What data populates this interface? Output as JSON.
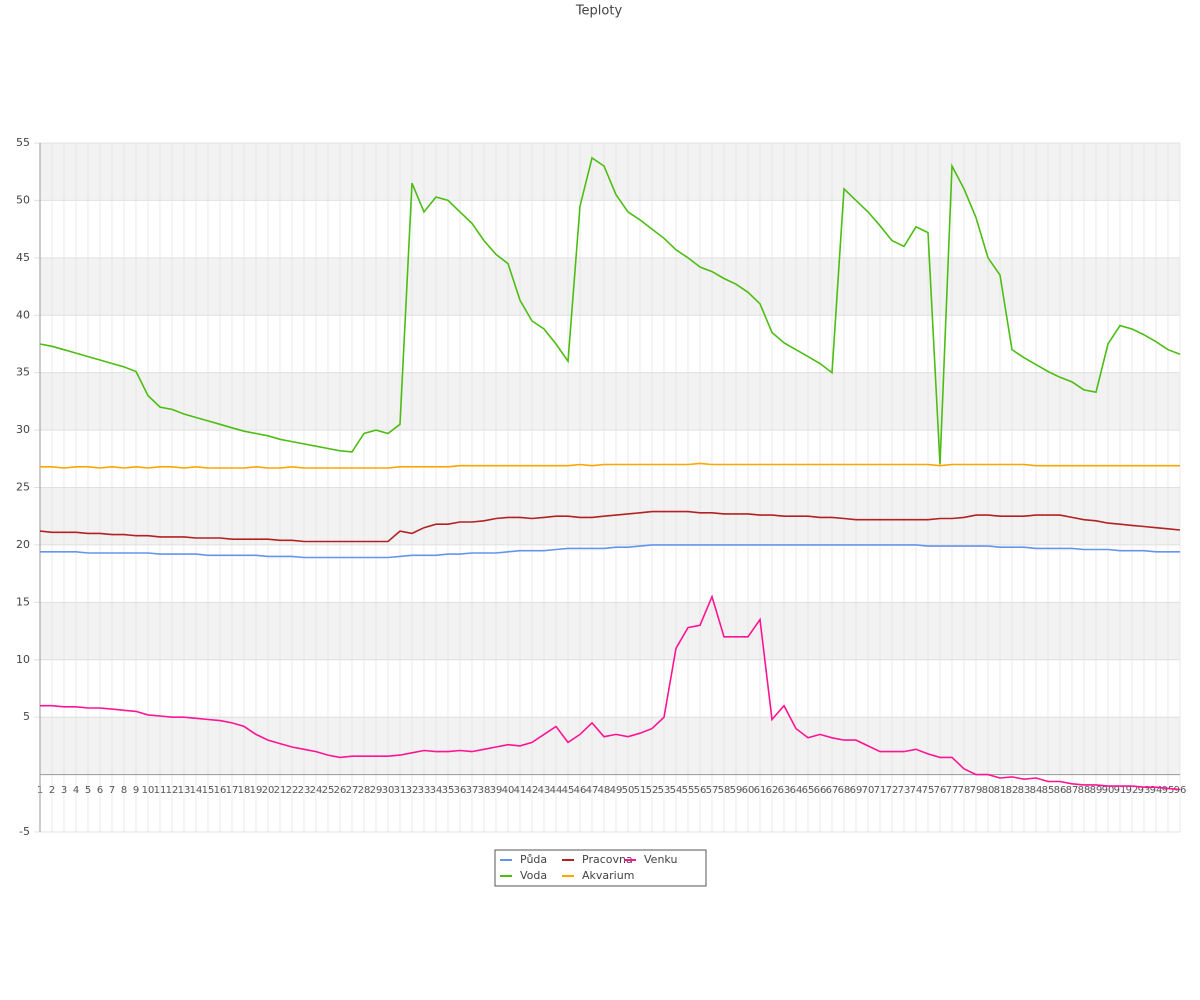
{
  "chart_data": {
    "type": "line",
    "title": "Teploty",
    "categories": [
      "1",
      "2",
      "3",
      "4",
      "5",
      "6",
      "7",
      "8",
      "9",
      "10",
      "11",
      "12",
      "13",
      "14",
      "15",
      "16",
      "17",
      "18",
      "19",
      "20",
      "21",
      "22",
      "23",
      "24",
      "25",
      "26",
      "27",
      "28",
      "29",
      "30",
      "31",
      "32",
      "33",
      "34",
      "35",
      "36",
      "37",
      "38",
      "39",
      "40",
      "41",
      "42",
      "43",
      "44",
      "45",
      "46",
      "47",
      "48",
      "49",
      "50",
      "51",
      "52",
      "53",
      "54",
      "55",
      "56",
      "57",
      "58",
      "59",
      "60",
      "61",
      "62",
      "63",
      "64",
      "65",
      "66",
      "67",
      "68",
      "69",
      "70",
      "71",
      "72",
      "73",
      "74",
      "75",
      "76",
      "77",
      "78",
      "79",
      "80",
      "81",
      "82",
      "83",
      "84",
      "85",
      "86",
      "87",
      "88",
      "89",
      "90",
      "91",
      "92",
      "93",
      "94",
      "95",
      "96"
    ],
    "series": [
      {
        "name": "Půda",
        "color": "#6495ed",
        "values": [
          19.4,
          19.4,
          19.4,
          19.4,
          19.3,
          19.3,
          19.3,
          19.3,
          19.3,
          19.3,
          19.2,
          19.2,
          19.2,
          19.2,
          19.1,
          19.1,
          19.1,
          19.1,
          19.1,
          19.0,
          19.0,
          19.0,
          18.9,
          18.9,
          18.9,
          18.9,
          18.9,
          18.9,
          18.9,
          18.9,
          19.0,
          19.1,
          19.1,
          19.1,
          19.2,
          19.2,
          19.3,
          19.3,
          19.3,
          19.4,
          19.5,
          19.5,
          19.5,
          19.6,
          19.7,
          19.7,
          19.7,
          19.7,
          19.8,
          19.8,
          19.9,
          20.0,
          20.0,
          20.0,
          20.0,
          20.0,
          20.0,
          20.0,
          20.0,
          20.0,
          20.0,
          20.0,
          20.0,
          20.0,
          20.0,
          20.0,
          20.0,
          20.0,
          20.0,
          20.0,
          20.0,
          20.0,
          20.0,
          20.0,
          19.9,
          19.9,
          19.9,
          19.9,
          19.9,
          19.9,
          19.8,
          19.8,
          19.8,
          19.7,
          19.7,
          19.7,
          19.7,
          19.6,
          19.6,
          19.6,
          19.5,
          19.5,
          19.5,
          19.4,
          19.4,
          19.4
        ]
      },
      {
        "name": "Voda",
        "color": "#4dbd13",
        "values": [
          37.5,
          37.3,
          37.0,
          36.7,
          36.4,
          36.1,
          35.8,
          35.5,
          35.1,
          33.0,
          32.0,
          31.8,
          31.4,
          31.1,
          30.8,
          30.5,
          30.2,
          29.9,
          29.7,
          29.5,
          29.2,
          29.0,
          28.8,
          28.6,
          28.4,
          28.2,
          28.1,
          29.7,
          30.0,
          29.7,
          30.5,
          51.5,
          49.0,
          50.3,
          50.0,
          49.0,
          48.0,
          46.5,
          45.3,
          44.5,
          41.3,
          39.5,
          38.8,
          37.5,
          36.0,
          49.5,
          53.7,
          53.0,
          50.5,
          49.0,
          48.3,
          47.5,
          46.7,
          45.7,
          45.0,
          44.2,
          43.8,
          43.2,
          42.7,
          42.0,
          41.0,
          38.5,
          37.6,
          37.0,
          36.4,
          35.8,
          35.0,
          51.0,
          50.0,
          49.0,
          47.8,
          46.5,
          46.0,
          47.7,
          47.2,
          27.0,
          53.0,
          51.0,
          48.5,
          45.0,
          43.5,
          37.0,
          36.3,
          35.7,
          35.1,
          34.6,
          34.2,
          33.5,
          33.3,
          37.5,
          39.1,
          38.8,
          38.3,
          37.7,
          37.0,
          36.6
        ]
      },
      {
        "name": "Pracovna",
        "color": "#b22222",
        "values": [
          21.2,
          21.1,
          21.1,
          21.1,
          21.0,
          21.0,
          20.9,
          20.9,
          20.8,
          20.8,
          20.7,
          20.7,
          20.7,
          20.6,
          20.6,
          20.6,
          20.5,
          20.5,
          20.5,
          20.5,
          20.4,
          20.4,
          20.3,
          20.3,
          20.3,
          20.3,
          20.3,
          20.3,
          20.3,
          20.3,
          21.2,
          21.0,
          21.5,
          21.8,
          21.8,
          22.0,
          22.0,
          22.1,
          22.3,
          22.4,
          22.4,
          22.3,
          22.4,
          22.5,
          22.5,
          22.4,
          22.4,
          22.5,
          22.6,
          22.7,
          22.8,
          22.9,
          22.9,
          22.9,
          22.9,
          22.8,
          22.8,
          22.7,
          22.7,
          22.7,
          22.6,
          22.6,
          22.5,
          22.5,
          22.5,
          22.4,
          22.4,
          22.3,
          22.2,
          22.2,
          22.2,
          22.2,
          22.2,
          22.2,
          22.2,
          22.3,
          22.3,
          22.4,
          22.6,
          22.6,
          22.5,
          22.5,
          22.5,
          22.6,
          22.6,
          22.6,
          22.4,
          22.2,
          22.1,
          21.9,
          21.8,
          21.7,
          21.6,
          21.5,
          21.4,
          21.3
        ]
      },
      {
        "name": "Akvarium",
        "color": "#ffa500",
        "values": [
          26.8,
          26.8,
          26.7,
          26.8,
          26.8,
          26.7,
          26.8,
          26.7,
          26.8,
          26.7,
          26.8,
          26.8,
          26.7,
          26.8,
          26.7,
          26.7,
          26.7,
          26.7,
          26.8,
          26.7,
          26.7,
          26.8,
          26.7,
          26.7,
          26.7,
          26.7,
          26.7,
          26.7,
          26.7,
          26.7,
          26.8,
          26.8,
          26.8,
          26.8,
          26.8,
          26.9,
          26.9,
          26.9,
          26.9,
          26.9,
          26.9,
          26.9,
          26.9,
          26.9,
          26.9,
          27.0,
          26.9,
          27.0,
          27.0,
          27.0,
          27.0,
          27.0,
          27.0,
          27.0,
          27.0,
          27.1,
          27.0,
          27.0,
          27.0,
          27.0,
          27.0,
          27.0,
          27.0,
          27.0,
          27.0,
          27.0,
          27.0,
          27.0,
          27.0,
          27.0,
          27.0,
          27.0,
          27.0,
          27.0,
          27.0,
          26.9,
          27.0,
          27.0,
          27.0,
          27.0,
          27.0,
          27.0,
          27.0,
          26.9,
          26.9,
          26.9,
          26.9,
          26.9,
          26.9,
          26.9,
          26.9,
          26.9,
          26.9,
          26.9,
          26.9,
          26.9
        ]
      },
      {
        "name": "Venku",
        "color": "#ff1493",
        "values": [
          6.0,
          6.0,
          5.9,
          5.9,
          5.8,
          5.8,
          5.7,
          5.6,
          5.5,
          5.2,
          5.1,
          5.0,
          5.0,
          4.9,
          4.8,
          4.7,
          4.5,
          4.2,
          3.5,
          3.0,
          2.7,
          2.4,
          2.2,
          2.0,
          1.7,
          1.5,
          1.6,
          1.6,
          1.6,
          1.6,
          1.7,
          1.9,
          2.1,
          2.0,
          2.0,
          2.1,
          2.0,
          2.2,
          2.4,
          2.6,
          2.5,
          2.8,
          3.5,
          4.2,
          2.8,
          3.5,
          4.5,
          3.3,
          3.5,
          3.3,
          3.6,
          4.0,
          5.0,
          11.0,
          12.8,
          13.0,
          15.5,
          12.0,
          12.0,
          12.0,
          13.5,
          4.8,
          6.0,
          4.0,
          3.2,
          3.5,
          3.2,
          3.0,
          3.0,
          2.5,
          2.0,
          2.0,
          2.0,
          2.2,
          1.8,
          1.5,
          1.5,
          0.5,
          0.0,
          0.0,
          -0.3,
          -0.2,
          -0.4,
          -0.3,
          -0.6,
          -0.6,
          -0.8,
          -0.9,
          -0.9,
          -1.0,
          -1.0,
          -1.0,
          -1.1,
          -1.1,
          -1.2,
          -1.3
        ]
      }
    ],
    "ylim": [
      -5,
      55
    ],
    "yticks": [
      -5,
      5,
      10,
      15,
      20,
      25,
      30,
      35,
      40,
      45,
      50,
      55
    ],
    "grid": true
  }
}
